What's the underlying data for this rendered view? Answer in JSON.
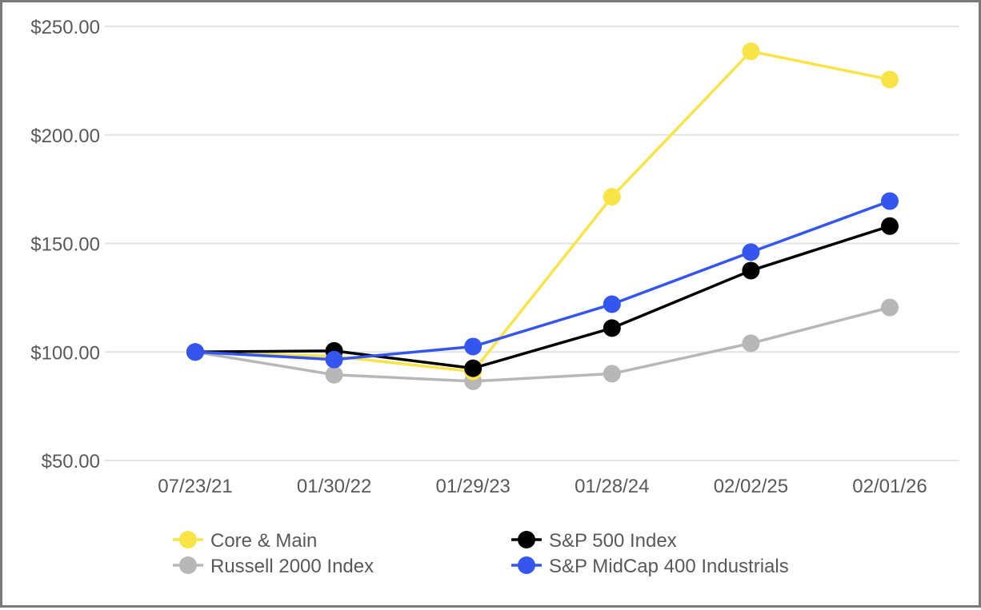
{
  "chart_data": {
    "type": "line",
    "title": "",
    "xlabel": "",
    "ylabel": "",
    "categories": [
      "07/23/21",
      "01/30/22",
      "01/29/23",
      "01/28/24",
      "02/02/25",
      "02/01/26"
    ],
    "ylim": [
      50,
      250
    ],
    "yticks": [
      50,
      100,
      150,
      200,
      250
    ],
    "ytick_labels": [
      "$50.00",
      "$100.00",
      "$150.00",
      "$200.00",
      "$250.00"
    ],
    "grid": true,
    "legend_position": "bottom",
    "series": [
      {
        "name": "Core & Main",
        "color": "#f9e448",
        "values": [
          100,
          98,
          91,
          171.5,
          238.5,
          225.5
        ]
      },
      {
        "name": "S&P 500 Index",
        "color": "#000000",
        "values": [
          100,
          100.5,
          92.5,
          111,
          137.5,
          158
        ]
      },
      {
        "name": "Russell 2000 Index",
        "color": "#b7b7b7",
        "values": [
          100,
          89.5,
          86.5,
          90,
          104,
          120.5
        ]
      },
      {
        "name": "S&P MidCap 400 Industrials",
        "color": "#3556ee",
        "values": [
          100,
          96.5,
          102.5,
          122,
          146,
          169.5
        ]
      }
    ]
  }
}
